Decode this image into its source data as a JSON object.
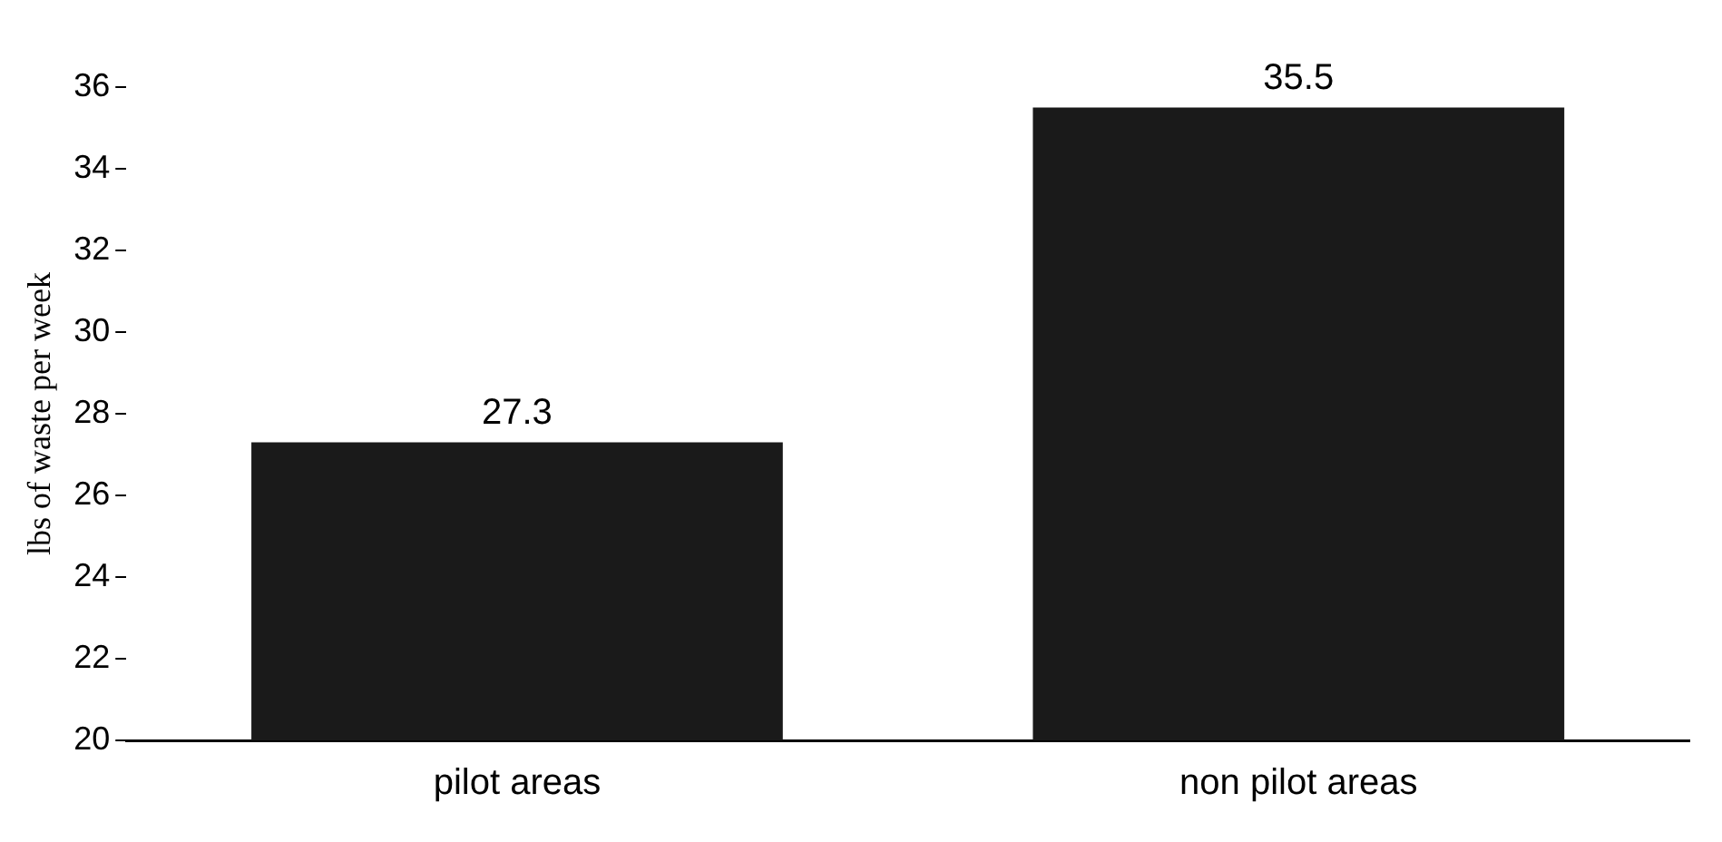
{
  "chart_data": {
    "type": "bar",
    "ylabel": "lbs of waste per week",
    "categories": [
      "pilot areas",
      "non pilot areas"
    ],
    "values": [
      27.3,
      35.5
    ],
    "color": "#1a1a1a",
    "ylim": [
      20,
      36
    ],
    "yticks": [
      20,
      22,
      24,
      26,
      28,
      30,
      32,
      34,
      36
    ],
    "grid": false,
    "data_labels": true,
    "legend": false
  }
}
